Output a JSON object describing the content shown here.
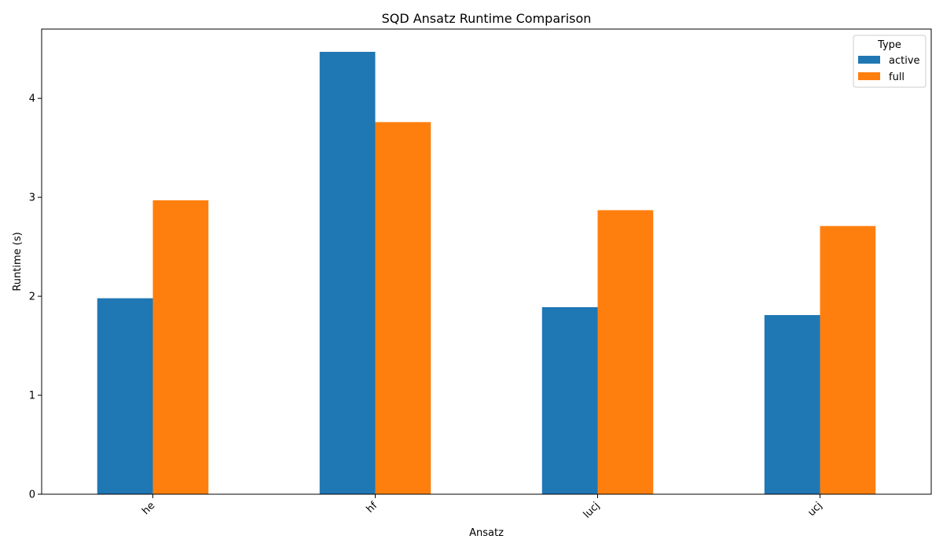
{
  "chart_data": {
    "type": "bar",
    "title": "SQD Ansatz Runtime Comparison",
    "xlabel": "Ansatz",
    "ylabel": "Runtime (s)",
    "categories": [
      "he",
      "hf",
      "lucj",
      "ucj"
    ],
    "series": [
      {
        "name": "active",
        "color": "#1f77b4",
        "values": [
          1.98,
          4.47,
          1.89,
          1.81
        ]
      },
      {
        "name": "full",
        "color": "#ff7f0e",
        "values": [
          2.97,
          3.76,
          2.87,
          2.71
        ]
      }
    ],
    "ylim": [
      0,
      4.7
    ],
    "yticks": [
      "0",
      "1",
      "2",
      "3",
      "4"
    ],
    "grid": false,
    "legend": {
      "title": "Type",
      "placement": "top-right"
    }
  }
}
